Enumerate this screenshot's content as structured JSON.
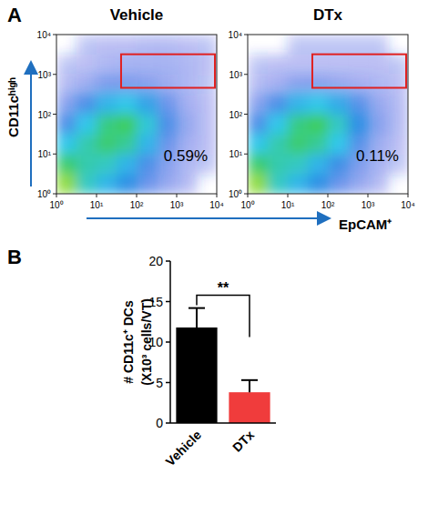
{
  "panel_labels": [
    "A",
    "B"
  ],
  "chart_data": [
    {
      "type": "density",
      "title": "Vehicle",
      "log": true,
      "ylabel": "CD11cʰⁱᵍʰ",
      "xlim": [
        1,
        10000
      ],
      "ylim": [
        1,
        10000
      ],
      "xticks": [
        {
          "value": 1,
          "label": "10⁰"
        },
        {
          "value": 10,
          "label": "10¹"
        },
        {
          "value": 100,
          "label": "10²"
        },
        {
          "value": 1000,
          "label": "10³"
        },
        {
          "value": 10000,
          "label": "10⁴"
        }
      ],
      "yticks": [
        {
          "value": 1,
          "label": "10⁰"
        },
        {
          "value": 10,
          "label": "10¹"
        },
        {
          "value": 100,
          "label": "10²"
        },
        {
          "value": 1000,
          "label": "10³"
        },
        {
          "value": 10000,
          "label": "10⁴"
        }
      ],
      "cells": [
        [
          0.0,
          0.01,
          0.02,
          0.02,
          0.03,
          0.03,
          0.02,
          0.01
        ],
        [
          0.01,
          0.02,
          0.04,
          0.05,
          0.05,
          0.05,
          0.04,
          0.02
        ],
        [
          0.03,
          0.07,
          0.12,
          0.12,
          0.1,
          0.07,
          0.04,
          0.01
        ],
        [
          0.1,
          0.2,
          0.35,
          0.4,
          0.3,
          0.15,
          0.06,
          0.02
        ],
        [
          0.2,
          0.4,
          0.65,
          0.75,
          0.45,
          0.2,
          0.08,
          0.02
        ],
        [
          0.4,
          0.55,
          0.7,
          0.6,
          0.35,
          0.15,
          0.06,
          0.02
        ],
        [
          0.7,
          0.55,
          0.5,
          0.35,
          0.2,
          0.1,
          0.04,
          0.01
        ],
        [
          0.9,
          0.5,
          0.35,
          0.25,
          0.15,
          0.08,
          0.03,
          0.0
        ]
      ],
      "gate": {
        "x": [
          41,
          9000
        ],
        "y": [
          460,
          3200
        ]
      },
      "color": "#e02020",
      "annotation": "0.59%"
    },
    {
      "type": "density",
      "title": "DTx",
      "log": true,
      "xlabel": "EpCAM⁺",
      "xlim": [
        1,
        10000
      ],
      "ylim": [
        1,
        10000
      ],
      "xticks": [
        {
          "value": 1,
          "label": "10⁰"
        },
        {
          "value": 10,
          "label": "10¹"
        },
        {
          "value": 100,
          "label": "10²"
        },
        {
          "value": 1000,
          "label": "10³"
        },
        {
          "value": 10000,
          "label": "10⁴"
        }
      ],
      "yticks": [
        {
          "value": 1,
          "label": "10⁰"
        },
        {
          "value": 10,
          "label": "10¹"
        },
        {
          "value": 100,
          "label": "10²"
        },
        {
          "value": 1000,
          "label": "10³"
        },
        {
          "value": 10000,
          "label": "10⁴"
        }
      ],
      "cells": [
        [
          0.0,
          0.0,
          0.01,
          0.01,
          0.01,
          0.01,
          0.01,
          0.0
        ],
        [
          0.01,
          0.02,
          0.02,
          0.02,
          0.02,
          0.02,
          0.02,
          0.01
        ],
        [
          0.03,
          0.06,
          0.1,
          0.1,
          0.08,
          0.06,
          0.04,
          0.02
        ],
        [
          0.1,
          0.2,
          0.35,
          0.4,
          0.32,
          0.18,
          0.08,
          0.03
        ],
        [
          0.2,
          0.4,
          0.65,
          0.75,
          0.5,
          0.25,
          0.1,
          0.03
        ],
        [
          0.4,
          0.55,
          0.7,
          0.6,
          0.4,
          0.18,
          0.07,
          0.02
        ],
        [
          0.7,
          0.55,
          0.5,
          0.35,
          0.22,
          0.12,
          0.05,
          0.01
        ],
        [
          0.9,
          0.5,
          0.35,
          0.25,
          0.15,
          0.08,
          0.03,
          0.0
        ]
      ],
      "gate": {
        "x": [
          41,
          9000
        ],
        "y": [
          460,
          3200
        ]
      },
      "color": "#e02020",
      "annotation": "0.11%"
    },
    {
      "type": "bar",
      "ylabel": [
        "# CD11c⁺ DCs",
        "(X10³ cells/VT)"
      ],
      "categories": [
        "Vehicle",
        "DTx"
      ],
      "values": [
        11.8,
        3.8
      ],
      "errors": [
        2.4,
        1.5
      ],
      "colors": [
        "#000000",
        "#f03c3c"
      ],
      "ylim": [
        0,
        20
      ],
      "yticks": [
        0,
        5,
        10,
        15,
        20
      ],
      "significance": "**"
    }
  ]
}
